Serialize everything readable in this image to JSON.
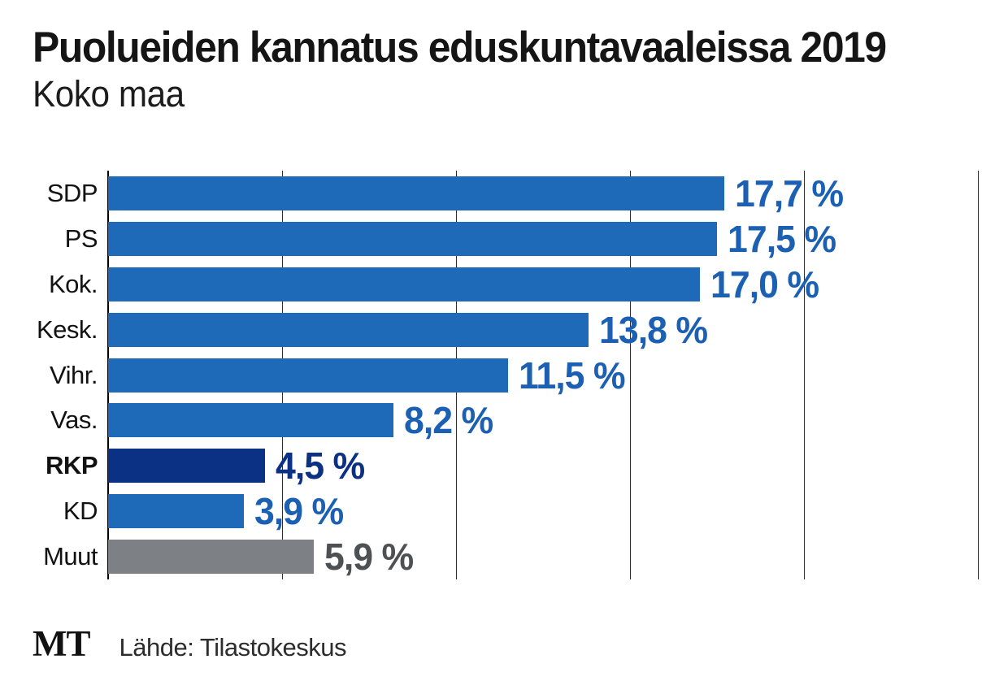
{
  "header": {
    "title": "Puolueiden kannatus eduskuntavaaleissa 2019",
    "subtitle": "Koko maa"
  },
  "footer": {
    "logo": "MT",
    "source": "Lähde: Tilastokeskus"
  },
  "colors": {
    "bar_blue": "#1f6ab8",
    "bar_navy": "#0a3183",
    "bar_gray": "#7d8185",
    "value_blue": "#1b60b2",
    "value_navy": "#0a3183",
    "value_gray": "#4d5154",
    "gridline": "#2e2e2e",
    "axis": "#000000"
  },
  "chart_data": {
    "type": "bar",
    "orientation": "horizontal",
    "title": "Puolueiden kannatus eduskuntavaaleissa 2019",
    "subtitle": "Koko maa",
    "xlim": [
      0,
      25
    ],
    "gridlines_pct": [
      0,
      5,
      10,
      15,
      20,
      25
    ],
    "grid": true,
    "legend": false,
    "categories": [
      "SDP",
      "PS",
      "Kok.",
      "Kesk.",
      "Vihr.",
      "Vas.",
      "RKP",
      "KD",
      "Muut"
    ],
    "values": [
      17.7,
      17.5,
      17.0,
      13.8,
      11.5,
      8.2,
      4.5,
      3.9,
      5.9
    ],
    "parties": [
      {
        "label": "SDP",
        "value": 17.7,
        "value_label": "17,7 %",
        "bar_color": "bar_blue",
        "value_color": "value_blue",
        "bold_label": false
      },
      {
        "label": "PS",
        "value": 17.5,
        "value_label": "17,5 %",
        "bar_color": "bar_blue",
        "value_color": "value_blue",
        "bold_label": false
      },
      {
        "label": "Kok.",
        "value": 17.0,
        "value_label": "17,0 %",
        "bar_color": "bar_blue",
        "value_color": "value_blue",
        "bold_label": false
      },
      {
        "label": "Kesk.",
        "value": 13.8,
        "value_label": "13,8 %",
        "bar_color": "bar_blue",
        "value_color": "value_blue",
        "bold_label": false
      },
      {
        "label": "Vihr.",
        "value": 11.5,
        "value_label": "11,5 %",
        "bar_color": "bar_blue",
        "value_color": "value_blue",
        "bold_label": false
      },
      {
        "label": "Vas.",
        "value": 8.2,
        "value_label": "8,2 %",
        "bar_color": "bar_blue",
        "value_color": "value_blue",
        "bold_label": false
      },
      {
        "label": "RKP",
        "value": 4.5,
        "value_label": "4,5 %",
        "bar_color": "bar_navy",
        "value_color": "value_navy",
        "bold_label": true
      },
      {
        "label": "KD",
        "value": 3.9,
        "value_label": "3,9 %",
        "bar_color": "bar_blue",
        "value_color": "value_blue",
        "bold_label": false
      },
      {
        "label": "Muut",
        "value": 5.9,
        "value_label": "5,9 %",
        "bar_color": "bar_gray",
        "value_color": "value_gray",
        "bold_label": false
      }
    ]
  }
}
